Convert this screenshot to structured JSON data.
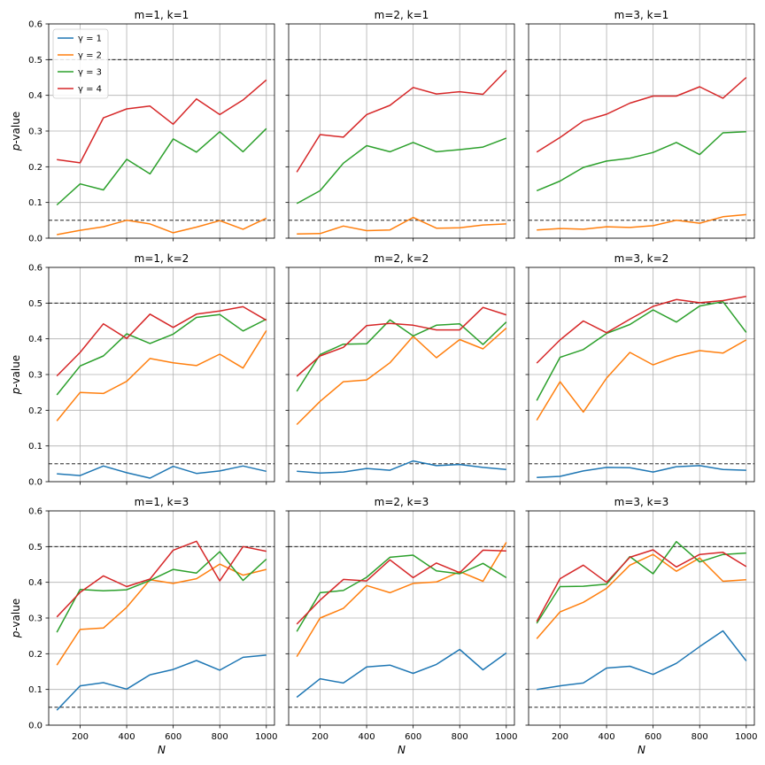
{
  "figure": {
    "ylabel_main": "p",
    "ylabel_suffix": "-value",
    "xlabel": "N"
  },
  "legend": {
    "location": "upper-left",
    "panel": 0,
    "entries": [
      "γ = 1",
      "γ = 2",
      "γ = 3",
      "γ = 4"
    ]
  },
  "colors": {
    "γ = 1": "#1f77b4",
    "γ = 2": "#ff7f0e",
    "γ = 3": "#2ca02c",
    "γ = 4": "#d62728"
  },
  "reference_lines": [
    0.05,
    0.5
  ],
  "chart_data": [
    {
      "type": "line",
      "title": "m=1, k=1",
      "x": [
        100,
        200,
        300,
        400,
        500,
        600,
        700,
        800,
        900,
        1000
      ],
      "xlim": [
        65,
        1035
      ],
      "ylim": [
        0,
        0.6
      ],
      "xticks": [
        "200",
        "400",
        "600",
        "800",
        "1000"
      ],
      "yticks": [
        "0.0",
        "0.1",
        "0.2",
        "0.3",
        "0.4",
        "0.5",
        "0.6"
      ],
      "grid": true,
      "series": [
        {
          "name": "γ = 2",
          "values": [
            0.01,
            0.022,
            0.032,
            0.05,
            0.04,
            0.015,
            0.031,
            0.049,
            0.025,
            0.056
          ]
        },
        {
          "name": "γ = 3",
          "values": [
            0.093,
            0.152,
            0.135,
            0.221,
            0.18,
            0.278,
            0.241,
            0.298,
            0.242,
            0.307
          ]
        },
        {
          "name": "γ = 4",
          "values": [
            0.22,
            0.211,
            0.337,
            0.362,
            0.37,
            0.319,
            0.39,
            0.346,
            0.387,
            0.443
          ]
        }
      ]
    },
    {
      "type": "line",
      "title": "m=2, k=1",
      "x": [
        100,
        200,
        300,
        400,
        500,
        600,
        700,
        800,
        900,
        1000
      ],
      "xlim": [
        65,
        1035
      ],
      "ylim": [
        0,
        0.6
      ],
      "xticks": [
        "200",
        "400",
        "600",
        "800",
        "1000"
      ],
      "yticks": [
        "0.0",
        "0.1",
        "0.2",
        "0.3",
        "0.4",
        "0.5",
        "0.6"
      ],
      "grid": true,
      "series": [
        {
          "name": "γ = 2",
          "values": [
            0.012,
            0.013,
            0.034,
            0.021,
            0.023,
            0.058,
            0.028,
            0.029,
            0.037,
            0.04
          ]
        },
        {
          "name": "γ = 3",
          "values": [
            0.097,
            0.133,
            0.21,
            0.259,
            0.242,
            0.268,
            0.242,
            0.248,
            0.255,
            0.28
          ]
        },
        {
          "name": "γ = 4",
          "values": [
            0.185,
            0.29,
            0.283,
            0.346,
            0.372,
            0.422,
            0.404,
            0.41,
            0.403,
            0.47
          ]
        }
      ]
    },
    {
      "type": "line",
      "title": "m=3, k=1",
      "x": [
        100,
        200,
        300,
        400,
        500,
        600,
        700,
        800,
        900,
        1000
      ],
      "xlim": [
        65,
        1035
      ],
      "ylim": [
        0,
        0.6
      ],
      "xticks": [
        "200",
        "400",
        "600",
        "800",
        "1000"
      ],
      "yticks": [
        "0.0",
        "0.1",
        "0.2",
        "0.3",
        "0.4",
        "0.5",
        "0.6"
      ],
      "grid": true,
      "series": [
        {
          "name": "γ = 2",
          "values": [
            0.023,
            0.027,
            0.025,
            0.032,
            0.03,
            0.035,
            0.05,
            0.042,
            0.06,
            0.066
          ]
        },
        {
          "name": "γ = 3",
          "values": [
            0.133,
            0.16,
            0.198,
            0.216,
            0.224,
            0.24,
            0.268,
            0.234,
            0.295,
            0.298
          ]
        },
        {
          "name": "γ = 4",
          "values": [
            0.241,
            0.282,
            0.328,
            0.347,
            0.378,
            0.398,
            0.398,
            0.424,
            0.392,
            0.45
          ]
        }
      ]
    },
    {
      "type": "line",
      "title": "m=1, k=2",
      "x": [
        100,
        200,
        300,
        400,
        500,
        600,
        700,
        800,
        900,
        1000
      ],
      "xlim": [
        65,
        1035
      ],
      "ylim": [
        0,
        0.6
      ],
      "xticks": [
        "200",
        "400",
        "600",
        "800",
        "1000"
      ],
      "yticks": [
        "0.0",
        "0.1",
        "0.2",
        "0.3",
        "0.4",
        "0.5",
        "0.6"
      ],
      "grid": true,
      "series": [
        {
          "name": "γ = 1",
          "values": [
            0.022,
            0.017,
            0.044,
            0.025,
            0.01,
            0.043,
            0.023,
            0.03,
            0.044,
            0.029
          ]
        },
        {
          "name": "γ = 2",
          "values": [
            0.17,
            0.25,
            0.247,
            0.281,
            0.345,
            0.333,
            0.325,
            0.357,
            0.318,
            0.423
          ]
        },
        {
          "name": "γ = 3",
          "values": [
            0.243,
            0.324,
            0.352,
            0.414,
            0.387,
            0.413,
            0.46,
            0.468,
            0.422,
            0.455
          ]
        },
        {
          "name": "γ = 4",
          "values": [
            0.296,
            0.362,
            0.442,
            0.401,
            0.469,
            0.432,
            0.469,
            0.478,
            0.49,
            0.452
          ]
        }
      ]
    },
    {
      "type": "line",
      "title": "m=2, k=2",
      "x": [
        100,
        200,
        300,
        400,
        500,
        600,
        700,
        800,
        900,
        1000
      ],
      "xlim": [
        65,
        1035
      ],
      "ylim": [
        0,
        0.6
      ],
      "xticks": [
        "200",
        "400",
        "600",
        "800",
        "1000"
      ],
      "yticks": [
        "0.0",
        "0.1",
        "0.2",
        "0.3",
        "0.4",
        "0.5",
        "0.6"
      ],
      "grid": true,
      "series": [
        {
          "name": "γ = 1",
          "values": [
            0.029,
            0.024,
            0.027,
            0.037,
            0.032,
            0.058,
            0.045,
            0.048,
            0.04,
            0.034
          ]
        },
        {
          "name": "γ = 2",
          "values": [
            0.16,
            0.225,
            0.28,
            0.285,
            0.333,
            0.407,
            0.347,
            0.398,
            0.372,
            0.43
          ]
        },
        {
          "name": "γ = 3",
          "values": [
            0.253,
            0.356,
            0.385,
            0.386,
            0.453,
            0.408,
            0.438,
            0.442,
            0.384,
            0.447
          ]
        },
        {
          "name": "γ = 4",
          "values": [
            0.295,
            0.352,
            0.376,
            0.437,
            0.443,
            0.438,
            0.425,
            0.425,
            0.488,
            0.467
          ]
        }
      ]
    },
    {
      "type": "line",
      "title": "m=3, k=2",
      "x": [
        100,
        200,
        300,
        400,
        500,
        600,
        700,
        800,
        900,
        1000
      ],
      "xlim": [
        65,
        1035
      ],
      "ylim": [
        0,
        0.6
      ],
      "xticks": [
        "200",
        "400",
        "600",
        "800",
        "1000"
      ],
      "yticks": [
        "0.0",
        "0.1",
        "0.2",
        "0.3",
        "0.4",
        "0.5",
        "0.6"
      ],
      "grid": true,
      "series": [
        {
          "name": "γ = 1",
          "values": [
            0.012,
            0.015,
            0.03,
            0.04,
            0.039,
            0.027,
            0.042,
            0.045,
            0.034,
            0.032
          ]
        },
        {
          "name": "γ = 2",
          "values": [
            0.172,
            0.28,
            0.195,
            0.29,
            0.362,
            0.327,
            0.351,
            0.367,
            0.36,
            0.397
          ]
        },
        {
          "name": "γ = 3",
          "values": [
            0.227,
            0.348,
            0.37,
            0.415,
            0.44,
            0.481,
            0.447,
            0.492,
            0.504,
            0.418
          ]
        },
        {
          "name": "γ = 4",
          "values": [
            0.332,
            0.397,
            0.45,
            0.417,
            0.455,
            0.491,
            0.51,
            0.501,
            0.507,
            0.519
          ]
        }
      ]
    },
    {
      "type": "line",
      "title": "m=1, k=3",
      "x": [
        100,
        200,
        300,
        400,
        500,
        600,
        700,
        800,
        900,
        1000
      ],
      "xlim": [
        65,
        1035
      ],
      "ylim": [
        0,
        0.6
      ],
      "xticks": [
        "200",
        "400",
        "600",
        "800",
        "1000"
      ],
      "yticks": [
        "0.0",
        "0.1",
        "0.2",
        "0.3",
        "0.4",
        "0.5",
        "0.6"
      ],
      "grid": true,
      "series": [
        {
          "name": "γ = 1",
          "values": [
            0.042,
            0.11,
            0.119,
            0.101,
            0.141,
            0.156,
            0.181,
            0.154,
            0.19,
            0.196
          ]
        },
        {
          "name": "γ = 2",
          "values": [
            0.168,
            0.268,
            0.272,
            0.33,
            0.407,
            0.397,
            0.41,
            0.451,
            0.42,
            0.436
          ]
        },
        {
          "name": "γ = 3",
          "values": [
            0.26,
            0.38,
            0.376,
            0.379,
            0.405,
            0.436,
            0.426,
            0.486,
            0.405,
            0.465
          ]
        },
        {
          "name": "γ = 4",
          "values": [
            0.303,
            0.372,
            0.418,
            0.388,
            0.409,
            0.49,
            0.515,
            0.404,
            0.5,
            0.487
          ]
        }
      ]
    },
    {
      "type": "line",
      "title": "m=2, k=3",
      "x": [
        100,
        200,
        300,
        400,
        500,
        600,
        700,
        800,
        900,
        1000
      ],
      "xlim": [
        65,
        1035
      ],
      "ylim": [
        0,
        0.6
      ],
      "xticks": [
        "200",
        "400",
        "600",
        "800",
        "1000"
      ],
      "yticks": [
        "0.0",
        "0.1",
        "0.2",
        "0.3",
        "0.4",
        "0.5",
        "0.6"
      ],
      "grid": true,
      "series": [
        {
          "name": "γ = 1",
          "values": [
            0.078,
            0.13,
            0.118,
            0.163,
            0.168,
            0.145,
            0.17,
            0.212,
            0.155,
            0.202
          ]
        },
        {
          "name": "γ = 2",
          "values": [
            0.192,
            0.3,
            0.327,
            0.391,
            0.371,
            0.397,
            0.401,
            0.43,
            0.403,
            0.512
          ]
        },
        {
          "name": "γ = 3",
          "values": [
            0.262,
            0.371,
            0.377,
            0.414,
            0.47,
            0.476,
            0.432,
            0.424,
            0.453,
            0.413
          ]
        },
        {
          "name": "γ = 4",
          "values": [
            0.283,
            0.35,
            0.408,
            0.404,
            0.463,
            0.413,
            0.454,
            0.427,
            0.49,
            0.488
          ]
        }
      ]
    },
    {
      "type": "line",
      "title": "m=3, k=3",
      "x": [
        100,
        200,
        300,
        400,
        500,
        600,
        700,
        800,
        900,
        1000
      ],
      "xlim": [
        65,
        1035
      ],
      "ylim": [
        0,
        0.6
      ],
      "xticks": [
        "200",
        "400",
        "600",
        "800",
        "1000"
      ],
      "yticks": [
        "0.0",
        "0.1",
        "0.2",
        "0.3",
        "0.4",
        "0.5",
        "0.6"
      ],
      "grid": true,
      "series": [
        {
          "name": "γ = 1",
          "values": [
            0.1,
            0.11,
            0.118,
            0.16,
            0.165,
            0.142,
            0.173,
            0.22,
            0.264,
            0.18
          ]
        },
        {
          "name": "γ = 2",
          "values": [
            0.242,
            0.317,
            0.344,
            0.383,
            0.448,
            0.478,
            0.431,
            0.468,
            0.403,
            0.407
          ]
        },
        {
          "name": "γ = 3",
          "values": [
            0.285,
            0.388,
            0.389,
            0.395,
            0.472,
            0.424,
            0.514,
            0.457,
            0.478,
            0.482
          ]
        },
        {
          "name": "γ = 4",
          "values": [
            0.29,
            0.41,
            0.448,
            0.4,
            0.47,
            0.491,
            0.443,
            0.478,
            0.484,
            0.444
          ]
        }
      ]
    }
  ]
}
